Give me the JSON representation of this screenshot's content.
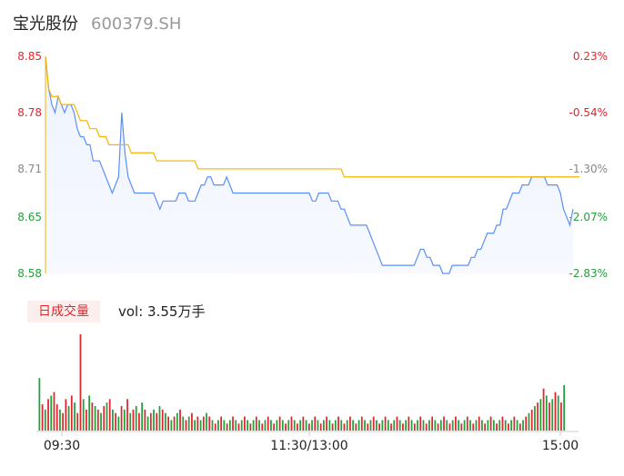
{
  "header": {
    "name": "宝光股份",
    "code": "600379.SH"
  },
  "volume_panel": {
    "tag": "日成交量",
    "label": "vol: 3.55万手"
  },
  "chart_data": [
    {
      "type": "line",
      "price_ticks": [
        "8.85",
        "8.78",
        "8.71",
        "8.65",
        "8.58"
      ],
      "price_tick_values": [
        8.85,
        8.78,
        8.71,
        8.65,
        8.58
      ],
      "pct_ticks": [
        "0.23%",
        "-0.54%",
        "-1.30%",
        "-2.07%",
        "-2.83%"
      ],
      "x_ticks": [
        "09:30",
        "11:30/13:00",
        "15:00"
      ],
      "ylim": [
        8.58,
        8.85
      ],
      "colors": {
        "price": "#5b8ff9",
        "avg": "#f4b400",
        "up": "#e0262d",
        "down": "#22a03a",
        "neutral": "#888888"
      },
      "price": [
        8.85,
        8.81,
        8.79,
        8.78,
        8.8,
        8.79,
        8.78,
        8.79,
        8.79,
        8.78,
        8.76,
        8.75,
        8.75,
        8.74,
        8.74,
        8.72,
        8.72,
        8.72,
        8.71,
        8.7,
        8.69,
        8.68,
        8.69,
        8.7,
        8.78,
        8.73,
        8.7,
        8.69,
        8.68,
        8.68,
        8.68,
        8.68,
        8.68,
        8.68,
        8.68,
        8.67,
        8.66,
        8.67,
        8.67,
        8.67,
        8.67,
        8.67,
        8.68,
        8.68,
        8.68,
        8.67,
        8.67,
        8.67,
        8.68,
        8.69,
        8.69,
        8.7,
        8.7,
        8.69,
        8.69,
        8.69,
        8.69,
        8.7,
        8.69,
        8.68,
        8.68,
        8.68,
        8.68,
        8.68,
        8.68,
        8.68,
        8.68,
        8.68,
        8.68,
        8.68,
        8.68,
        8.68,
        8.68,
        8.68,
        8.68,
        8.68,
        8.68,
        8.68,
        8.68,
        8.68,
        8.68,
        8.68,
        8.68,
        8.68,
        8.67,
        8.67,
        8.68,
        8.68,
        8.68,
        8.68,
        8.67,
        8.67,
        8.67,
        8.66,
        8.66,
        8.65,
        8.64,
        8.64,
        8.64,
        8.64,
        8.64,
        8.64,
        8.63,
        8.62,
        8.61,
        8.6,
        8.59,
        8.59,
        8.59,
        8.59,
        8.59,
        8.59,
        8.59,
        8.59,
        8.59,
        8.59,
        8.59,
        8.6,
        8.61,
        8.61,
        8.6,
        8.6,
        8.59,
        8.59,
        8.59,
        8.58,
        8.58,
        8.58,
        8.59,
        8.59,
        8.59,
        8.59,
        8.59,
        8.59,
        8.6,
        8.6,
        8.61,
        8.61,
        8.62,
        8.63,
        8.63,
        8.63,
        8.64,
        8.64,
        8.66,
        8.66,
        8.67,
        8.68,
        8.68,
        8.68,
        8.69,
        8.69,
        8.69,
        8.7,
        8.7,
        8.7,
        8.7,
        8.7,
        8.69,
        8.69,
        8.69,
        8.69,
        8.68,
        8.66,
        8.65,
        8.64,
        8.66
      ],
      "avg": [
        8.85,
        8.81,
        8.8,
        8.8,
        8.8,
        8.79,
        8.79,
        8.79,
        8.79,
        8.79,
        8.78,
        8.77,
        8.77,
        8.77,
        8.76,
        8.76,
        8.76,
        8.75,
        8.75,
        8.75,
        8.74,
        8.74,
        8.74,
        8.74,
        8.74,
        8.74,
        8.74,
        8.73,
        8.73,
        8.73,
        8.73,
        8.73,
        8.73,
        8.73,
        8.73,
        8.72,
        8.72,
        8.72,
        8.72,
        8.72,
        8.72,
        8.72,
        8.72,
        8.72,
        8.72,
        8.72,
        8.72,
        8.72,
        8.71,
        8.71,
        8.71,
        8.71,
        8.71,
        8.71,
        8.71,
        8.71,
        8.71,
        8.71,
        8.71,
        8.71,
        8.71,
        8.71,
        8.71,
        8.71,
        8.71,
        8.71,
        8.71,
        8.71,
        8.71,
        8.71,
        8.71,
        8.71,
        8.71,
        8.71,
        8.71,
        8.71,
        8.71,
        8.71,
        8.71,
        8.71,
        8.71,
        8.71,
        8.71,
        8.71,
        8.71,
        8.71,
        8.71,
        8.71,
        8.71,
        8.71,
        8.71,
        8.71,
        8.71,
        8.71,
        8.7,
        8.7,
        8.7,
        8.7,
        8.7,
        8.7,
        8.7,
        8.7,
        8.7,
        8.7,
        8.7,
        8.7,
        8.7,
        8.7,
        8.7,
        8.7,
        8.7,
        8.7,
        8.7,
        8.7,
        8.7,
        8.7,
        8.7,
        8.7,
        8.7,
        8.7,
        8.7,
        8.7,
        8.7,
        8.7,
        8.7,
        8.7,
        8.7,
        8.7,
        8.7,
        8.7,
        8.7,
        8.7,
        8.7,
        8.7,
        8.7,
        8.7,
        8.7,
        8.7,
        8.7,
        8.7,
        8.7,
        8.7,
        8.7,
        8.7,
        8.7,
        8.7,
        8.7,
        8.7,
        8.7,
        8.7,
        8.7,
        8.7,
        8.7,
        8.7,
        8.7,
        8.7,
        8.7,
        8.7,
        8.7,
        8.7,
        8.7,
        8.7,
        8.7,
        8.7,
        8.7,
        8.7,
        8.7,
        8.7,
        8.7
      ],
      "volume": [
        30,
        15,
        12,
        18,
        20,
        22,
        15,
        12,
        10,
        18,
        14,
        20,
        16,
        10,
        55,
        18,
        12,
        20,
        16,
        14,
        12,
        10,
        14,
        16,
        18,
        12,
        10,
        8,
        14,
        12,
        18,
        10,
        12,
        14,
        10,
        16,
        12,
        8,
        10,
        12,
        10,
        14,
        12,
        10,
        8,
        6,
        8,
        10,
        12,
        8,
        6,
        8,
        10,
        6,
        8,
        6,
        8,
        10,
        8,
        6,
        4,
        6,
        8,
        6,
        4,
        6,
        8,
        6,
        4,
        6,
        8,
        6,
        4,
        6,
        8,
        6,
        4,
        6,
        8,
        6,
        4,
        6,
        8,
        6,
        4,
        6,
        8,
        6,
        4,
        6,
        8,
        6,
        4,
        6,
        8,
        6,
        4,
        6,
        8,
        6,
        4,
        6,
        8,
        6,
        4,
        6,
        8,
        6,
        4,
        6,
        8,
        6,
        4,
        6,
        8,
        6,
        4,
        6,
        8,
        6,
        4,
        6,
        8,
        6,
        4,
        6,
        8,
        6,
        4,
        6,
        8,
        6,
        4,
        6,
        8,
        6,
        4,
        6,
        8,
        6,
        4,
        6,
        8,
        6,
        4,
        6,
        8,
        6,
        4,
        6,
        8,
        6,
        4,
        6,
        8,
        6,
        4,
        6,
        8,
        6,
        4,
        6,
        8,
        6,
        4,
        6,
        8,
        10,
        12,
        14,
        16,
        18,
        24,
        20,
        16,
        18,
        22,
        20,
        16,
        26
      ],
      "volume_up": [
        false,
        true,
        false,
        true,
        false,
        true,
        true,
        false,
        true,
        true,
        false,
        true,
        false,
        true,
        true,
        false,
        true,
        false,
        true,
        false,
        true,
        false,
        true,
        false,
        true,
        false,
        true,
        false,
        true,
        false,
        true,
        false,
        true,
        false,
        true,
        false,
        true,
        false,
        true,
        false,
        true,
        false,
        true,
        false,
        true,
        false,
        true,
        false,
        true,
        false,
        true,
        false,
        true,
        false,
        true,
        false,
        true,
        false,
        true,
        false,
        true,
        false,
        true,
        false,
        true,
        false,
        true,
        false,
        true,
        false,
        true,
        false,
        true,
        false,
        true,
        false,
        true,
        false,
        true,
        false,
        true,
        false,
        true,
        false,
        true,
        false,
        true,
        false,
        true,
        false,
        true,
        false,
        true,
        false,
        true,
        false,
        true,
        false,
        true,
        false,
        true,
        false,
        true,
        false,
        true,
        false,
        true,
        false,
        true,
        false,
        true,
        false,
        true,
        false,
        true,
        false,
        true,
        false,
        true,
        false,
        true,
        false,
        true,
        false,
        true,
        false,
        true,
        false,
        true,
        false,
        true,
        false,
        true,
        false,
        true,
        false,
        true,
        false,
        true,
        false,
        true,
        false,
        true,
        false,
        true,
        false,
        true,
        false,
        true,
        false,
        true,
        false,
        true,
        false,
        true,
        false,
        true,
        false,
        true,
        false,
        true,
        false,
        true,
        false,
        true,
        false,
        true,
        false,
        true,
        false,
        true,
        false,
        true,
        false,
        true,
        false,
        true,
        false,
        true,
        false,
        true
      ]
    }
  ]
}
